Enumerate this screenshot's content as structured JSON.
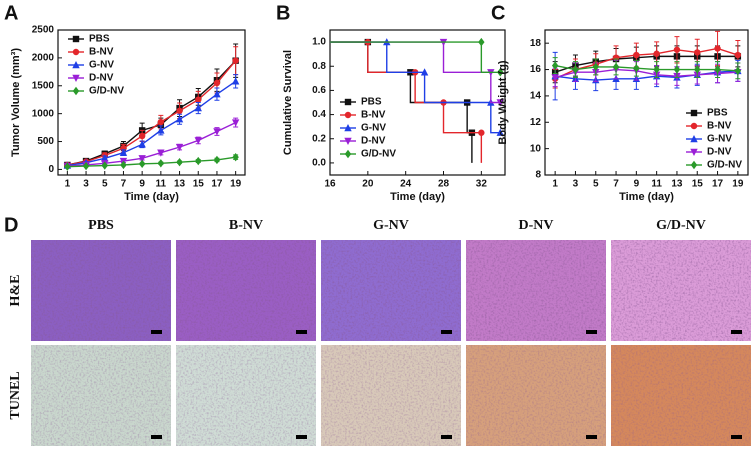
{
  "chart_data": [
    {
      "type": "line",
      "panel": "A",
      "xlabel": "Time (day)",
      "ylabel": "Tumor Volume (mm³)",
      "x": [
        1,
        3,
        5,
        7,
        9,
        11,
        13,
        15,
        17,
        19
      ],
      "xlim": [
        0,
        20
      ],
      "xticks": [
        1,
        3,
        5,
        7,
        9,
        11,
        13,
        15,
        17,
        19
      ],
      "ylim": [
        -100,
        2500
      ],
      "yticks": [
        0,
        500,
        1000,
        1500,
        2000,
        2500
      ],
      "legend": "upper left",
      "series": [
        {
          "name": "PBS",
          "color": "#111111",
          "marker": "square",
          "values": [
            80,
            150,
            280,
            420,
            700,
            800,
            1100,
            1300,
            1600,
            1950
          ],
          "errors": [
            10,
            30,
            50,
            80,
            130,
            120,
            150,
            150,
            200,
            300
          ]
        },
        {
          "name": "B-NV",
          "color": "#e3262b",
          "marker": "circle",
          "values": [
            80,
            140,
            250,
            380,
            600,
            850,
            1050,
            1250,
            1550,
            1950
          ],
          "errors": [
            10,
            30,
            50,
            70,
            100,
            120,
            140,
            150,
            180,
            250
          ]
        },
        {
          "name": "G-NV",
          "color": "#1f3fe6",
          "marker": "triangle-up",
          "values": [
            70,
            120,
            200,
            300,
            450,
            700,
            900,
            1100,
            1350,
            1580
          ],
          "errors": [
            10,
            20,
            40,
            50,
            60,
            80,
            90,
            100,
            110,
            120
          ]
        },
        {
          "name": "D-NV",
          "color": "#9a1fd6",
          "marker": "triangle-down",
          "values": [
            60,
            80,
            110,
            150,
            200,
            300,
            400,
            520,
            680,
            840
          ],
          "errors": [
            10,
            15,
            20,
            25,
            30,
            40,
            50,
            60,
            70,
            80
          ]
        },
        {
          "name": "G/D-NV",
          "color": "#2a9a2a",
          "marker": "diamond",
          "values": [
            50,
            60,
            70,
            80,
            100,
            110,
            130,
            150,
            170,
            220
          ],
          "errors": [
            5,
            10,
            10,
            15,
            15,
            20,
            20,
            25,
            30,
            40
          ]
        }
      ]
    },
    {
      "type": "step",
      "panel": "B",
      "xlabel": "Time (day)",
      "ylabel": "Cumulative Survival",
      "xlim": [
        16,
        34.5
      ],
      "xticks": [
        16,
        20,
        24,
        28,
        32
      ],
      "ylim": [
        -0.1,
        1.1
      ],
      "yticks": [
        {
          "value": 0,
          "label": "0.0"
        },
        {
          "value": 0.2,
          "label": "0.2"
        },
        {
          "value": 0.4,
          "label": "0.4"
        },
        {
          "value": 0.6,
          "label": "0.6"
        },
        {
          "value": 0.8,
          "label": "0.8"
        },
        {
          "value": 1,
          "label": "1.0"
        }
      ],
      "legend": "center left",
      "series": [
        {
          "name": "PBS",
          "color": "#111111",
          "marker": "square",
          "x": [
            16,
            20,
            24.5,
            30.5,
            31
          ],
          "values": [
            1,
            0.75,
            0.5,
            0.25,
            0
          ]
        },
        {
          "name": "B-NV",
          "color": "#e3262b",
          "marker": "circle",
          "x": [
            16,
            20,
            25,
            28,
            32
          ],
          "values": [
            1,
            0.75,
            0.5,
            0.25,
            0
          ]
        },
        {
          "name": "G-NV",
          "color": "#1f3fe6",
          "marker": "triangle-up",
          "x": [
            16,
            22,
            26,
            33,
            34
          ],
          "values": [
            1,
            0.75,
            0.5,
            0.25,
            0.25
          ]
        },
        {
          "name": "D-NV",
          "color": "#9a1fd6",
          "marker": "triangle-down",
          "x": [
            16,
            28,
            33,
            34
          ],
          "values": [
            1,
            0.75,
            0.5,
            0.5
          ]
        },
        {
          "name": "G/D-NV",
          "color": "#2a9a2a",
          "marker": "diamond",
          "x": [
            16,
            32,
            34
          ],
          "values": [
            1,
            0.75,
            0.75
          ]
        }
      ]
    },
    {
      "type": "line",
      "panel": "C",
      "xlabel": "Time (day)",
      "ylabel": "Body Weight (g)",
      "x": [
        1,
        3,
        5,
        7,
        9,
        11,
        13,
        15,
        17,
        19
      ],
      "xlim": [
        0,
        20
      ],
      "xticks": [
        1,
        3,
        5,
        7,
        9,
        11,
        13,
        15,
        17,
        19
      ],
      "ylim": [
        8,
        19
      ],
      "yticks": [
        8,
        10,
        12,
        14,
        16,
        18
      ],
      "legend": "lower right",
      "series": [
        {
          "name": "PBS",
          "color": "#111111",
          "marker": "square",
          "values": [
            15.8,
            16.3,
            16.6,
            16.8,
            16.9,
            17.0,
            17.0,
            17.0,
            17.0,
            17.0
          ],
          "errors": [
            0.8,
            0.8,
            0.8,
            0.8,
            0.8,
            0.8,
            0.8,
            0.8,
            0.8,
            0.8
          ]
        },
        {
          "name": "B-NV",
          "color": "#e3262b",
          "marker": "circle",
          "values": [
            15.3,
            16.0,
            16.4,
            16.9,
            17.1,
            17.2,
            17.5,
            17.3,
            17.6,
            17.1
          ],
          "errors": [
            0.7,
            0.8,
            0.8,
            0.9,
            0.9,
            0.9,
            1.0,
            1.0,
            1.3,
            1.1
          ]
        },
        {
          "name": "G-NV",
          "color": "#1f3fe6",
          "marker": "triangle-up",
          "values": [
            15.5,
            15.3,
            15.2,
            15.3,
            15.3,
            15.5,
            15.4,
            15.6,
            15.8,
            15.9
          ],
          "errors": [
            1.8,
            0.8,
            0.8,
            0.8,
            0.8,
            0.8,
            0.8,
            0.8,
            0.8,
            0.8
          ]
        },
        {
          "name": "D-NV",
          "color": "#9a1fd6",
          "marker": "triangle-down",
          "values": [
            15.4,
            15.8,
            15.8,
            16.0,
            15.9,
            15.6,
            15.5,
            15.6,
            15.7,
            15.8
          ],
          "errors": [
            0.7,
            0.7,
            0.7,
            0.7,
            0.7,
            0.7,
            0.7,
            0.7,
            0.7,
            0.7
          ]
        },
        {
          "name": "G/D-NV",
          "color": "#2a9a2a",
          "marker": "diamond",
          "values": [
            16.3,
            16.0,
            16.2,
            16.2,
            16.1,
            16.0,
            16.0,
            16.0,
            16.0,
            15.9
          ],
          "errors": [
            0.6,
            0.6,
            0.6,
            0.6,
            0.6,
            0.6,
            0.6,
            0.6,
            0.6,
            0.6
          ]
        }
      ]
    }
  ],
  "histology": {
    "panel": "D",
    "columns": [
      "PBS",
      "B-NV",
      "G-NV",
      "D-NV",
      "G/D-NV"
    ],
    "rows": [
      "H&E",
      "TUNEL"
    ]
  }
}
